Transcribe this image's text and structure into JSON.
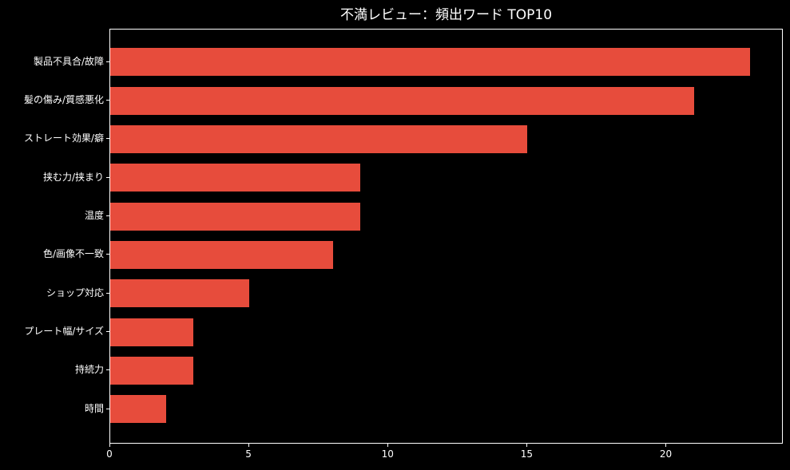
{
  "title": "不満レビュー：頻出ワード TOP10",
  "colors": {
    "background": "#000000",
    "bar": "#e74c3c",
    "axis": "#ffffff",
    "text": "#ffffff"
  },
  "chart_data": {
    "type": "bar",
    "orientation": "horizontal",
    "title": "不満レビュー：頻出ワード TOP10",
    "categories": [
      "製品不具合/故障",
      "髪の傷み/質感悪化",
      "ストレート効果/癖",
      "挟む力/挟まり",
      "温度",
      "色/画像不一致",
      "ショップ対応",
      "プレート幅/サイズ",
      "持続力",
      "時間"
    ],
    "values": [
      23,
      21,
      15,
      9,
      9,
      8,
      5,
      3,
      3,
      2
    ],
    "xlabel": "",
    "ylabel": "",
    "xlim": [
      0,
      24.15
    ],
    "xticks": [
      0,
      5,
      10,
      15,
      20
    ],
    "grid": false,
    "legend": null
  }
}
